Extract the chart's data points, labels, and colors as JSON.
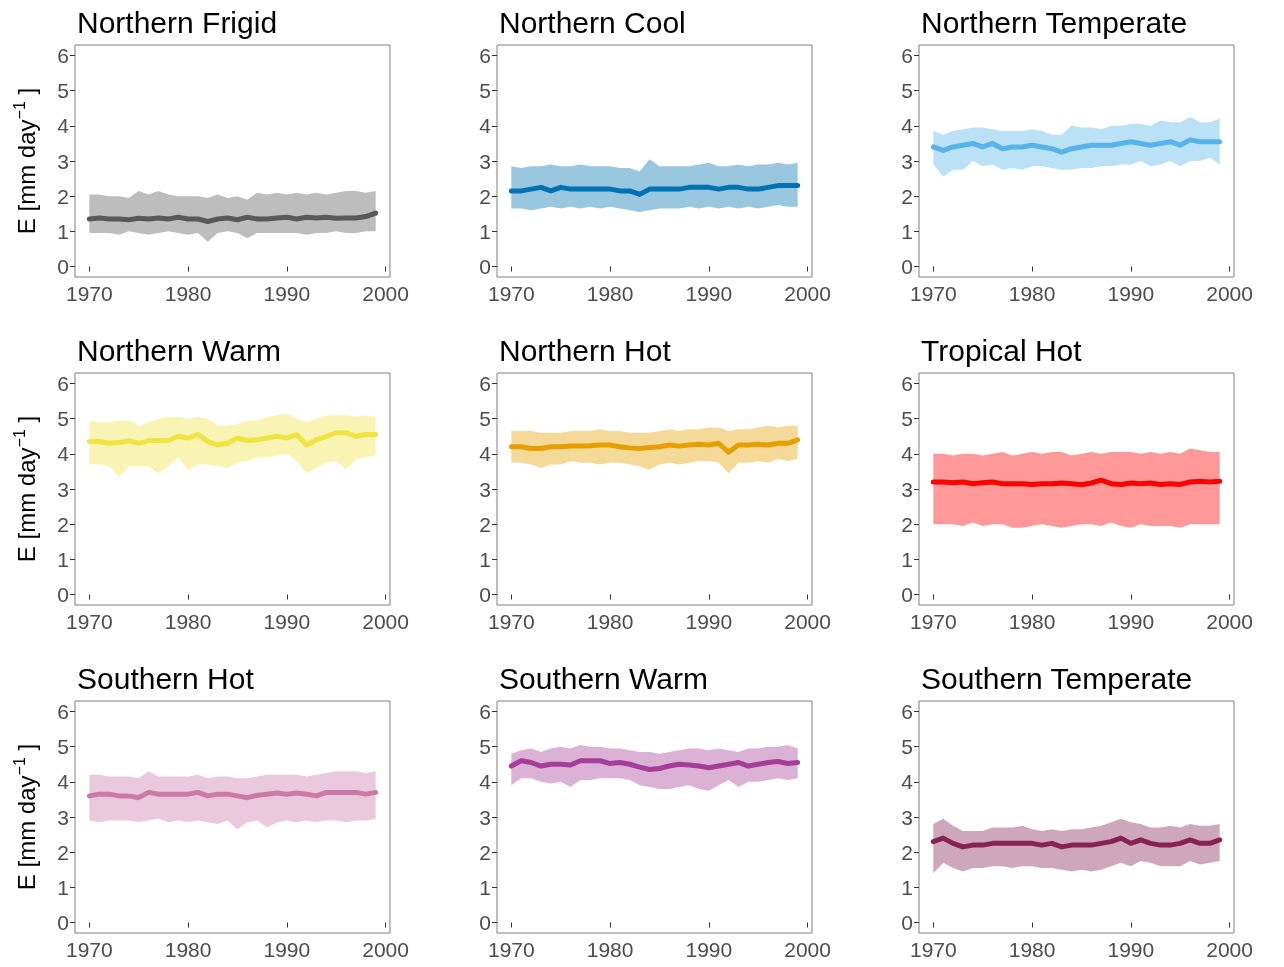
{
  "chart_data": [
    {
      "type": "line",
      "title": "Northern Frigid",
      "ylabel": "E [mm day$^{−1}$ ]",
      "x": [
        1970,
        1971,
        1972,
        1973,
        1974,
        1975,
        1976,
        1977,
        1978,
        1979,
        1980,
        1981,
        1982,
        1983,
        1984,
        1985,
        1986,
        1987,
        1988,
        1989,
        1990,
        1991,
        1992,
        1993,
        1994,
        1995,
        1996,
        1997,
        1998,
        1999
      ],
      "xlim": [
        1968.55,
        2000.45
      ],
      "ylim": [
        -0.3,
        6.3
      ],
      "xticks": [
        1970,
        1980,
        1990,
        2000
      ],
      "yticks": [
        0,
        1,
        2,
        3,
        4,
        5,
        6
      ],
      "series": [
        {
          "color": "#595959",
          "values": [
            1.35,
            1.38,
            1.35,
            1.35,
            1.33,
            1.37,
            1.35,
            1.38,
            1.35,
            1.4,
            1.35,
            1.35,
            1.28,
            1.35,
            1.38,
            1.33,
            1.4,
            1.35,
            1.35,
            1.38,
            1.4,
            1.35,
            1.4,
            1.38,
            1.4,
            1.37,
            1.38,
            1.38,
            1.42,
            1.52
          ],
          "lower": [
            0.95,
            0.95,
            0.95,
            0.9,
            1.0,
            0.95,
            0.9,
            0.95,
            1.0,
            0.95,
            0.9,
            0.95,
            0.7,
            0.95,
            1.0,
            0.95,
            0.8,
            0.95,
            0.95,
            0.95,
            0.95,
            0.95,
            0.9,
            0.95,
            0.95,
            1.0,
            0.95,
            0.95,
            1.0,
            1.0
          ],
          "upper": [
            2.05,
            2.05,
            2.0,
            2.0,
            1.95,
            2.15,
            2.05,
            2.15,
            2.05,
            2.0,
            2.0,
            2.0,
            1.95,
            2.05,
            1.95,
            2.0,
            1.9,
            2.1,
            2.05,
            2.1,
            2.05,
            2.1,
            2.05,
            2.1,
            2.05,
            2.1,
            2.15,
            2.15,
            2.1,
            2.15
          ]
        }
      ]
    },
    {
      "type": "line",
      "title": "Northern Cool",
      "x": [
        1970,
        1971,
        1972,
        1973,
        1974,
        1975,
        1976,
        1977,
        1978,
        1979,
        1980,
        1981,
        1982,
        1983,
        1984,
        1985,
        1986,
        1987,
        1988,
        1989,
        1990,
        1991,
        1992,
        1993,
        1994,
        1995,
        1996,
        1997,
        1998,
        1999
      ],
      "xlim": [
        1968.55,
        2000.45
      ],
      "ylim": [
        -0.3,
        6.3
      ],
      "xticks": [
        1970,
        1980,
        1990,
        2000
      ],
      "yticks": [
        0,
        1,
        2,
        3,
        4,
        5,
        6
      ],
      "series": [
        {
          "color": "#0072b2",
          "values": [
            2.15,
            2.15,
            2.2,
            2.25,
            2.15,
            2.25,
            2.2,
            2.2,
            2.2,
            2.2,
            2.2,
            2.15,
            2.15,
            2.05,
            2.2,
            2.2,
            2.2,
            2.2,
            2.25,
            2.25,
            2.25,
            2.2,
            2.25,
            2.25,
            2.2,
            2.2,
            2.25,
            2.3,
            2.3,
            2.3
          ],
          "lower": [
            1.65,
            1.65,
            1.6,
            1.65,
            1.7,
            1.65,
            1.7,
            1.65,
            1.7,
            1.65,
            1.7,
            1.65,
            1.6,
            1.55,
            1.6,
            1.65,
            1.65,
            1.65,
            1.7,
            1.65,
            1.7,
            1.65,
            1.7,
            1.65,
            1.7,
            1.65,
            1.7,
            1.75,
            1.7,
            1.7
          ],
          "upper": [
            2.85,
            2.8,
            2.85,
            2.85,
            2.9,
            2.85,
            2.85,
            2.9,
            2.85,
            2.85,
            2.85,
            2.8,
            2.8,
            2.7,
            3.05,
            2.85,
            2.85,
            2.85,
            2.85,
            2.9,
            2.95,
            2.85,
            2.85,
            2.9,
            2.85,
            2.9,
            2.9,
            2.95,
            2.9,
            2.95
          ]
        }
      ]
    },
    {
      "type": "line",
      "title": "Northern Temperate",
      "x": [
        1970,
        1971,
        1972,
        1973,
        1974,
        1975,
        1976,
        1977,
        1978,
        1979,
        1980,
        1981,
        1982,
        1983,
        1984,
        1985,
        1986,
        1987,
        1988,
        1989,
        1990,
        1991,
        1992,
        1993,
        1994,
        1995,
        1996,
        1997,
        1998,
        1999
      ],
      "xlim": [
        1968.55,
        2000.45
      ],
      "ylim": [
        -0.3,
        6.3
      ],
      "xticks": [
        1970,
        1980,
        1990,
        2000
      ],
      "yticks": [
        0,
        1,
        2,
        3,
        4,
        5,
        6
      ],
      "series": [
        {
          "color": "#56b4e9",
          "values": [
            3.4,
            3.3,
            3.4,
            3.45,
            3.5,
            3.4,
            3.5,
            3.35,
            3.4,
            3.4,
            3.45,
            3.4,
            3.35,
            3.25,
            3.35,
            3.4,
            3.45,
            3.45,
            3.45,
            3.5,
            3.55,
            3.5,
            3.45,
            3.5,
            3.55,
            3.45,
            3.6,
            3.55,
            3.55,
            3.55
          ],
          "lower": [
            2.9,
            2.55,
            2.75,
            2.75,
            3.0,
            2.85,
            2.9,
            2.75,
            2.8,
            2.75,
            2.85,
            2.85,
            2.8,
            2.75,
            2.75,
            2.8,
            2.8,
            2.85,
            2.85,
            2.9,
            2.9,
            3.0,
            2.85,
            2.9,
            3.0,
            2.85,
            3.0,
            3.0,
            3.1,
            2.9
          ],
          "upper": [
            3.85,
            3.75,
            3.85,
            3.9,
            3.95,
            3.95,
            3.9,
            3.85,
            3.85,
            3.85,
            3.9,
            3.85,
            3.75,
            3.75,
            4.0,
            3.95,
            3.95,
            3.9,
            4.0,
            4.0,
            4.05,
            4.05,
            4.0,
            4.15,
            4.1,
            4.1,
            4.25,
            4.1,
            4.1,
            4.2
          ]
        }
      ]
    },
    {
      "type": "line",
      "title": "Northern Warm",
      "ylabel": "E [mm day$^{−1}$ ]",
      "x": [
        1970,
        1971,
        1972,
        1973,
        1974,
        1975,
        1976,
        1977,
        1978,
        1979,
        1980,
        1981,
        1982,
        1983,
        1984,
        1985,
        1986,
        1987,
        1988,
        1989,
        1990,
        1991,
        1992,
        1993,
        1994,
        1995,
        1996,
        1997,
        1998,
        1999
      ],
      "xlim": [
        1968.55,
        2000.45
      ],
      "ylim": [
        -0.3,
        6.3
      ],
      "xticks": [
        1970,
        1980,
        1990,
        2000
      ],
      "yticks": [
        0,
        1,
        2,
        3,
        4,
        5,
        6
      ],
      "series": [
        {
          "color": "#f0e442",
          "values": [
            4.35,
            4.35,
            4.3,
            4.32,
            4.37,
            4.3,
            4.37,
            4.38,
            4.38,
            4.5,
            4.45,
            4.55,
            4.35,
            4.25,
            4.3,
            4.45,
            4.38,
            4.4,
            4.45,
            4.5,
            4.45,
            4.55,
            4.25,
            4.4,
            4.5,
            4.6,
            4.6,
            4.5,
            4.55,
            4.55
          ],
          "lower": [
            3.7,
            3.7,
            3.65,
            3.35,
            3.65,
            3.65,
            3.65,
            3.45,
            3.65,
            3.9,
            3.55,
            3.7,
            3.7,
            3.65,
            3.6,
            3.75,
            3.8,
            3.9,
            3.9,
            3.95,
            4.0,
            3.8,
            3.45,
            3.6,
            3.75,
            3.8,
            3.55,
            3.85,
            3.9,
            3.95
          ],
          "upper": [
            4.95,
            4.9,
            4.9,
            4.95,
            4.95,
            4.8,
            4.9,
            5.0,
            5.05,
            5.05,
            5.0,
            5.05,
            5.0,
            4.8,
            4.8,
            4.85,
            4.95,
            4.95,
            5.05,
            5.1,
            5.15,
            5.0,
            4.9,
            5.0,
            5.1,
            5.1,
            5.1,
            5.05,
            5.1,
            5.05
          ]
        }
      ]
    },
    {
      "type": "line",
      "title": "Northern Hot",
      "x": [
        1970,
        1971,
        1972,
        1973,
        1974,
        1975,
        1976,
        1977,
        1978,
        1979,
        1980,
        1981,
        1982,
        1983,
        1984,
        1985,
        1986,
        1987,
        1988,
        1989,
        1990,
        1991,
        1992,
        1993,
        1994,
        1995,
        1996,
        1997,
        1998,
        1999
      ],
      "xlim": [
        1968.55,
        2000.45
      ],
      "ylim": [
        -0.3,
        6.3
      ],
      "xticks": [
        1970,
        1980,
        1990,
        2000
      ],
      "yticks": [
        0,
        1,
        2,
        3,
        4,
        5,
        6
      ],
      "series": [
        {
          "color": "#e69f00",
          "values": [
            4.2,
            4.2,
            4.15,
            4.15,
            4.2,
            4.2,
            4.22,
            4.22,
            4.23,
            4.25,
            4.25,
            4.2,
            4.17,
            4.15,
            4.18,
            4.2,
            4.25,
            4.22,
            4.25,
            4.27,
            4.25,
            4.3,
            4.05,
            4.25,
            4.25,
            4.27,
            4.25,
            4.3,
            4.3,
            4.4
          ],
          "lower": [
            3.75,
            3.75,
            3.7,
            3.6,
            3.7,
            3.7,
            3.8,
            3.75,
            3.75,
            3.7,
            3.75,
            3.75,
            3.7,
            3.65,
            3.55,
            3.7,
            3.75,
            3.7,
            3.75,
            3.8,
            3.8,
            3.75,
            3.45,
            3.75,
            3.75,
            3.8,
            3.75,
            3.85,
            3.8,
            3.85
          ],
          "upper": [
            4.65,
            4.65,
            4.65,
            4.6,
            4.6,
            4.6,
            4.65,
            4.65,
            4.65,
            4.7,
            4.65,
            4.65,
            4.6,
            4.6,
            4.6,
            4.65,
            4.7,
            4.65,
            4.7,
            4.7,
            4.75,
            4.75,
            4.65,
            4.7,
            4.7,
            4.75,
            4.8,
            4.75,
            4.8,
            4.8
          ]
        }
      ]
    },
    {
      "type": "line",
      "title": "Tropical Hot",
      "x": [
        1970,
        1971,
        1972,
        1973,
        1974,
        1975,
        1976,
        1977,
        1978,
        1979,
        1980,
        1981,
        1982,
        1983,
        1984,
        1985,
        1986,
        1987,
        1988,
        1989,
        1990,
        1991,
        1992,
        1993,
        1994,
        1995,
        1996,
        1997,
        1998,
        1999
      ],
      "xlim": [
        1968.55,
        2000.45
      ],
      "ylim": [
        -0.3,
        6.3
      ],
      "xticks": [
        1970,
        1980,
        1990,
        2000
      ],
      "yticks": [
        0,
        1,
        2,
        3,
        4,
        5,
        6
      ],
      "series": [
        {
          "color": "#ff0000",
          "values": [
            3.2,
            3.2,
            3.18,
            3.2,
            3.15,
            3.18,
            3.2,
            3.15,
            3.15,
            3.15,
            3.13,
            3.15,
            3.15,
            3.17,
            3.15,
            3.12,
            3.17,
            3.25,
            3.15,
            3.13,
            3.17,
            3.15,
            3.17,
            3.13,
            3.15,
            3.13,
            3.2,
            3.22,
            3.2,
            3.22
          ],
          "lower": [
            2.0,
            2.0,
            2.0,
            1.95,
            2.05,
            1.95,
            2.0,
            2.0,
            1.9,
            1.9,
            1.95,
            2.0,
            1.95,
            1.9,
            1.95,
            2.0,
            2.0,
            1.95,
            2.05,
            1.95,
            1.9,
            2.0,
            1.95,
            1.95,
            1.95,
            1.9,
            2.0,
            2.0,
            2.0,
            2.0
          ],
          "upper": [
            4.0,
            4.0,
            3.95,
            4.0,
            4.0,
            3.95,
            4.0,
            4.05,
            3.95,
            4.0,
            4.05,
            4.0,
            4.05,
            4.05,
            3.95,
            4.0,
            4.05,
            4.0,
            4.05,
            4.05,
            4.05,
            4.0,
            4.05,
            4.0,
            4.05,
            4.0,
            4.15,
            4.1,
            4.05,
            4.05
          ]
        }
      ]
    },
    {
      "type": "line",
      "title": "Southern Hot",
      "ylabel": "E [mm day$^{−1}$ ]",
      "x": [
        1970,
        1971,
        1972,
        1973,
        1974,
        1975,
        1976,
        1977,
        1978,
        1979,
        1980,
        1981,
        1982,
        1983,
        1984,
        1985,
        1986,
        1987,
        1988,
        1989,
        1990,
        1991,
        1992,
        1993,
        1994,
        1995,
        1996,
        1997,
        1998,
        1999
      ],
      "xlim": [
        1968.55,
        2000.45
      ],
      "ylim": [
        -0.3,
        6.3
      ],
      "xticks": [
        1970,
        1980,
        1990,
        2000
      ],
      "yticks": [
        0,
        1,
        2,
        3,
        4,
        5,
        6
      ],
      "series": [
        {
          "color": "#cc79a7",
          "values": [
            3.6,
            3.65,
            3.65,
            3.6,
            3.6,
            3.55,
            3.7,
            3.65,
            3.65,
            3.65,
            3.65,
            3.7,
            3.6,
            3.65,
            3.65,
            3.6,
            3.55,
            3.62,
            3.65,
            3.68,
            3.65,
            3.68,
            3.65,
            3.6,
            3.7,
            3.7,
            3.7,
            3.7,
            3.65,
            3.7
          ],
          "lower": [
            2.9,
            2.85,
            2.9,
            2.9,
            2.9,
            2.85,
            2.9,
            2.95,
            2.85,
            2.9,
            2.85,
            2.9,
            2.85,
            2.8,
            2.9,
            2.65,
            2.85,
            2.9,
            2.7,
            2.85,
            2.9,
            2.85,
            2.9,
            2.85,
            2.9,
            2.9,
            2.85,
            2.9,
            2.9,
            2.95
          ],
          "upper": [
            4.2,
            4.2,
            4.15,
            4.15,
            4.15,
            4.1,
            4.3,
            4.15,
            4.15,
            4.15,
            4.15,
            4.2,
            4.1,
            4.15,
            4.15,
            4.1,
            4.1,
            4.15,
            4.2,
            4.2,
            4.2,
            4.2,
            4.15,
            4.2,
            4.25,
            4.3,
            4.3,
            4.3,
            4.25,
            4.3
          ]
        }
      ]
    },
    {
      "type": "line",
      "title": "Southern Warm",
      "x": [
        1970,
        1971,
        1972,
        1973,
        1974,
        1975,
        1976,
        1977,
        1978,
        1979,
        1980,
        1981,
        1982,
        1983,
        1984,
        1985,
        1986,
        1987,
        1988,
        1989,
        1990,
        1991,
        1992,
        1993,
        1994,
        1995,
        1996,
        1997,
        1998,
        1999
      ],
      "xlim": [
        1968.55,
        2000.45
      ],
      "ylim": [
        -0.3,
        6.3
      ],
      "xticks": [
        1970,
        1980,
        1990,
        2000
      ],
      "yticks": [
        0,
        1,
        2,
        3,
        4,
        5,
        6
      ],
      "series": [
        {
          "color": "#a63d98",
          "values": [
            4.45,
            4.6,
            4.55,
            4.45,
            4.5,
            4.5,
            4.48,
            4.6,
            4.6,
            4.6,
            4.52,
            4.55,
            4.5,
            4.42,
            4.35,
            4.38,
            4.45,
            4.5,
            4.48,
            4.45,
            4.4,
            4.45,
            4.5,
            4.55,
            4.45,
            4.5,
            4.55,
            4.58,
            4.52,
            4.55
          ],
          "lower": [
            3.9,
            4.1,
            4.1,
            4.0,
            3.95,
            4.0,
            3.85,
            4.05,
            4.05,
            4.1,
            4.1,
            4.1,
            4.05,
            3.9,
            3.85,
            3.8,
            3.8,
            3.85,
            3.9,
            3.8,
            3.75,
            3.9,
            4.05,
            3.85,
            4.0,
            4.0,
            4.05,
            4.1,
            4.05,
            4.1
          ],
          "upper": [
            4.8,
            4.9,
            4.95,
            4.85,
            4.95,
            5.0,
            4.95,
            5.05,
            5.0,
            5.0,
            4.95,
            4.95,
            4.9,
            4.85,
            4.85,
            4.8,
            4.85,
            4.9,
            4.95,
            4.95,
            4.9,
            4.95,
            4.9,
            4.85,
            4.95,
            4.95,
            5.0,
            5.0,
            5.05,
            4.95
          ]
        }
      ]
    },
    {
      "type": "line",
      "title": "Southern Temperate",
      "x": [
        1970,
        1971,
        1972,
        1973,
        1974,
        1975,
        1976,
        1977,
        1978,
        1979,
        1980,
        1981,
        1982,
        1983,
        1984,
        1985,
        1986,
        1987,
        1988,
        1989,
        1990,
        1991,
        1992,
        1993,
        1994,
        1995,
        1996,
        1997,
        1998,
        1999
      ],
      "xlim": [
        1968.55,
        2000.45
      ],
      "ylim": [
        -0.3,
        6.3
      ],
      "xticks": [
        1970,
        1980,
        1990,
        2000
      ],
      "yticks": [
        0,
        1,
        2,
        3,
        4,
        5,
        6
      ],
      "series": [
        {
          "color": "#882255",
          "values": [
            2.3,
            2.4,
            2.25,
            2.15,
            2.2,
            2.2,
            2.25,
            2.25,
            2.25,
            2.25,
            2.25,
            2.2,
            2.25,
            2.15,
            2.2,
            2.2,
            2.2,
            2.25,
            2.3,
            2.4,
            2.25,
            2.35,
            2.25,
            2.2,
            2.2,
            2.25,
            2.35,
            2.25,
            2.25,
            2.35
          ],
          "lower": [
            1.4,
            1.7,
            1.55,
            1.45,
            1.55,
            1.55,
            1.6,
            1.6,
            1.55,
            1.6,
            1.6,
            1.55,
            1.55,
            1.5,
            1.45,
            1.5,
            1.45,
            1.5,
            1.6,
            1.7,
            1.6,
            1.75,
            1.7,
            1.6,
            1.6,
            1.6,
            1.75,
            1.65,
            1.7,
            1.75
          ],
          "upper": [
            2.8,
            2.95,
            2.75,
            2.6,
            2.6,
            2.6,
            2.7,
            2.7,
            2.7,
            2.75,
            2.65,
            2.6,
            2.65,
            2.6,
            2.65,
            2.65,
            2.7,
            2.75,
            2.85,
            2.95,
            2.85,
            2.8,
            2.7,
            2.7,
            2.75,
            2.7,
            2.8,
            2.75,
            2.75,
            2.8
          ]
        }
      ]
    }
  ]
}
